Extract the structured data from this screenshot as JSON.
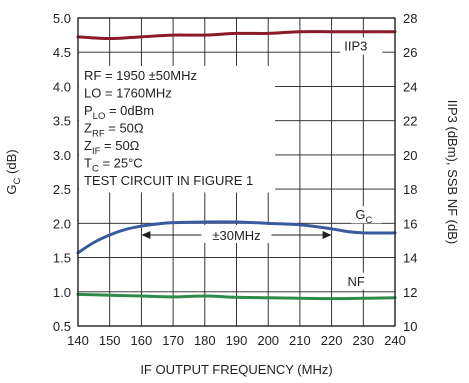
{
  "chart_data": {
    "type": "line",
    "xlabel": "IF OUTPUT FREQUENCY (MHz)",
    "xlim": [
      140,
      240
    ],
    "x_ticks": [
      "140",
      "150",
      "160",
      "170",
      "180",
      "190",
      "200",
      "210",
      "220",
      "230",
      "240"
    ],
    "y_left": {
      "label_main": "G",
      "label_sub": "C",
      "label_tail": " (dB)",
      "lim": [
        0.5,
        5.0
      ],
      "ticks": [
        "0.5",
        "1.0",
        "1.5",
        "2.0",
        "2.5",
        "3.0",
        "3.5",
        "4.0",
        "4.5",
        "5.0"
      ]
    },
    "y_right": {
      "label": "IIP3 (dBm), SSB NF (dB)",
      "lim": [
        10,
        28
      ],
      "ticks": [
        "10",
        "12",
        "14",
        "16",
        "18",
        "20",
        "22",
        "24",
        "26",
        "28"
      ]
    },
    "grid": true,
    "series": [
      {
        "name": "IIP3",
        "axis": "right",
        "color": "#8b1a2b",
        "x": [
          140,
          150,
          160,
          170,
          180,
          190,
          200,
          210,
          220,
          230,
          240
        ],
        "y": [
          26.9,
          26.8,
          26.9,
          27.0,
          27.0,
          27.1,
          27.1,
          27.2,
          27.2,
          27.2,
          27.2
        ]
      },
      {
        "name": "G",
        "name_sub": "C",
        "axis": "left",
        "color": "#3a5a9e",
        "x": [
          140,
          145,
          150,
          155,
          160,
          165,
          170,
          180,
          190,
          200,
          210,
          220,
          225,
          230,
          240
        ],
        "y": [
          1.57,
          1.72,
          1.83,
          1.91,
          1.96,
          1.99,
          2.01,
          2.02,
          2.02,
          2.0,
          1.98,
          1.92,
          1.88,
          1.86,
          1.86
        ]
      },
      {
        "name": "NF",
        "axis": "right",
        "color": "#2e8b4a",
        "x": [
          140,
          150,
          160,
          170,
          180,
          190,
          200,
          210,
          220,
          230,
          240
        ],
        "y": [
          11.85,
          11.8,
          11.75,
          11.7,
          11.75,
          11.68,
          11.65,
          11.62,
          11.6,
          11.62,
          11.65
        ]
      }
    ],
    "annotations": {
      "bandwidth_label": "±30MHz",
      "bandwidth_range": [
        160,
        220
      ],
      "bandwidth_y": 1.83
    },
    "conditions": [
      {
        "main": "RF = 1950 ±50MHz",
        "sub": "",
        "tail": ""
      },
      {
        "main": "LO = 1760MHz",
        "sub": "",
        "tail": ""
      },
      {
        "main": "P",
        "sub": "LO",
        "tail": " = 0dBm"
      },
      {
        "main": "Z",
        "sub": "RF",
        "tail": " = 50Ω"
      },
      {
        "main": "Z",
        "sub": "IF",
        "tail": " = 50Ω"
      },
      {
        "main": "T",
        "sub": "C",
        "tail": " = 25°C"
      },
      {
        "main": "TEST CIRCUIT IN FIGURE 1",
        "sub": "",
        "tail": ""
      }
    ]
  }
}
